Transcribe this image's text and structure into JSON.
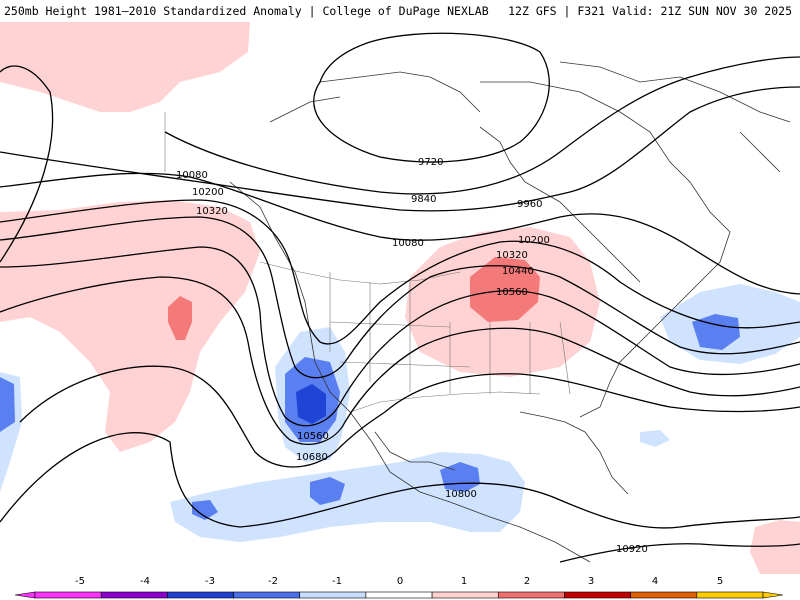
{
  "header": {
    "left": "250mb Height 1981–2010 Standardized Anomaly | College of DuPage NEXLAB",
    "right": "12Z GFS | F321 Valid: 21Z SUN NOV 30 2025"
  },
  "contours": {
    "c9720": "9720",
    "c9840": "9840",
    "c9960": "9960",
    "c10080a": "10080",
    "c10080b": "10080",
    "c10200a": "10200",
    "c10200b": "10200",
    "c10320a": "10320",
    "c10320b": "10320",
    "c10440": "10440",
    "c10560a": "10560",
    "c10560b": "10560",
    "c10680": "10680",
    "c10800": "10800",
    "c10920": "10920"
  },
  "legend": {
    "ticks": [
      "-5",
      "-4",
      "-3",
      "-2",
      "-1",
      "0",
      "1",
      "2",
      "3",
      "4",
      "5"
    ],
    "colors": [
      "#ff33ff",
      "#8a00cc",
      "#1e3fd0",
      "#4a6fe8",
      "#c8ddff",
      "#ffffff",
      "#ffd0d0",
      "#f07070",
      "#c00000",
      "#e06000",
      "#ffcc00"
    ]
  },
  "colors": {
    "anomaly_pos_1": "#ffd3d3",
    "anomaly_pos_2": "#f47a7a",
    "anomaly_neg_1": "#cfe3ff",
    "anomaly_neg_2": "#5a7ff0",
    "anomaly_neg_3": "#1f44d6"
  }
}
